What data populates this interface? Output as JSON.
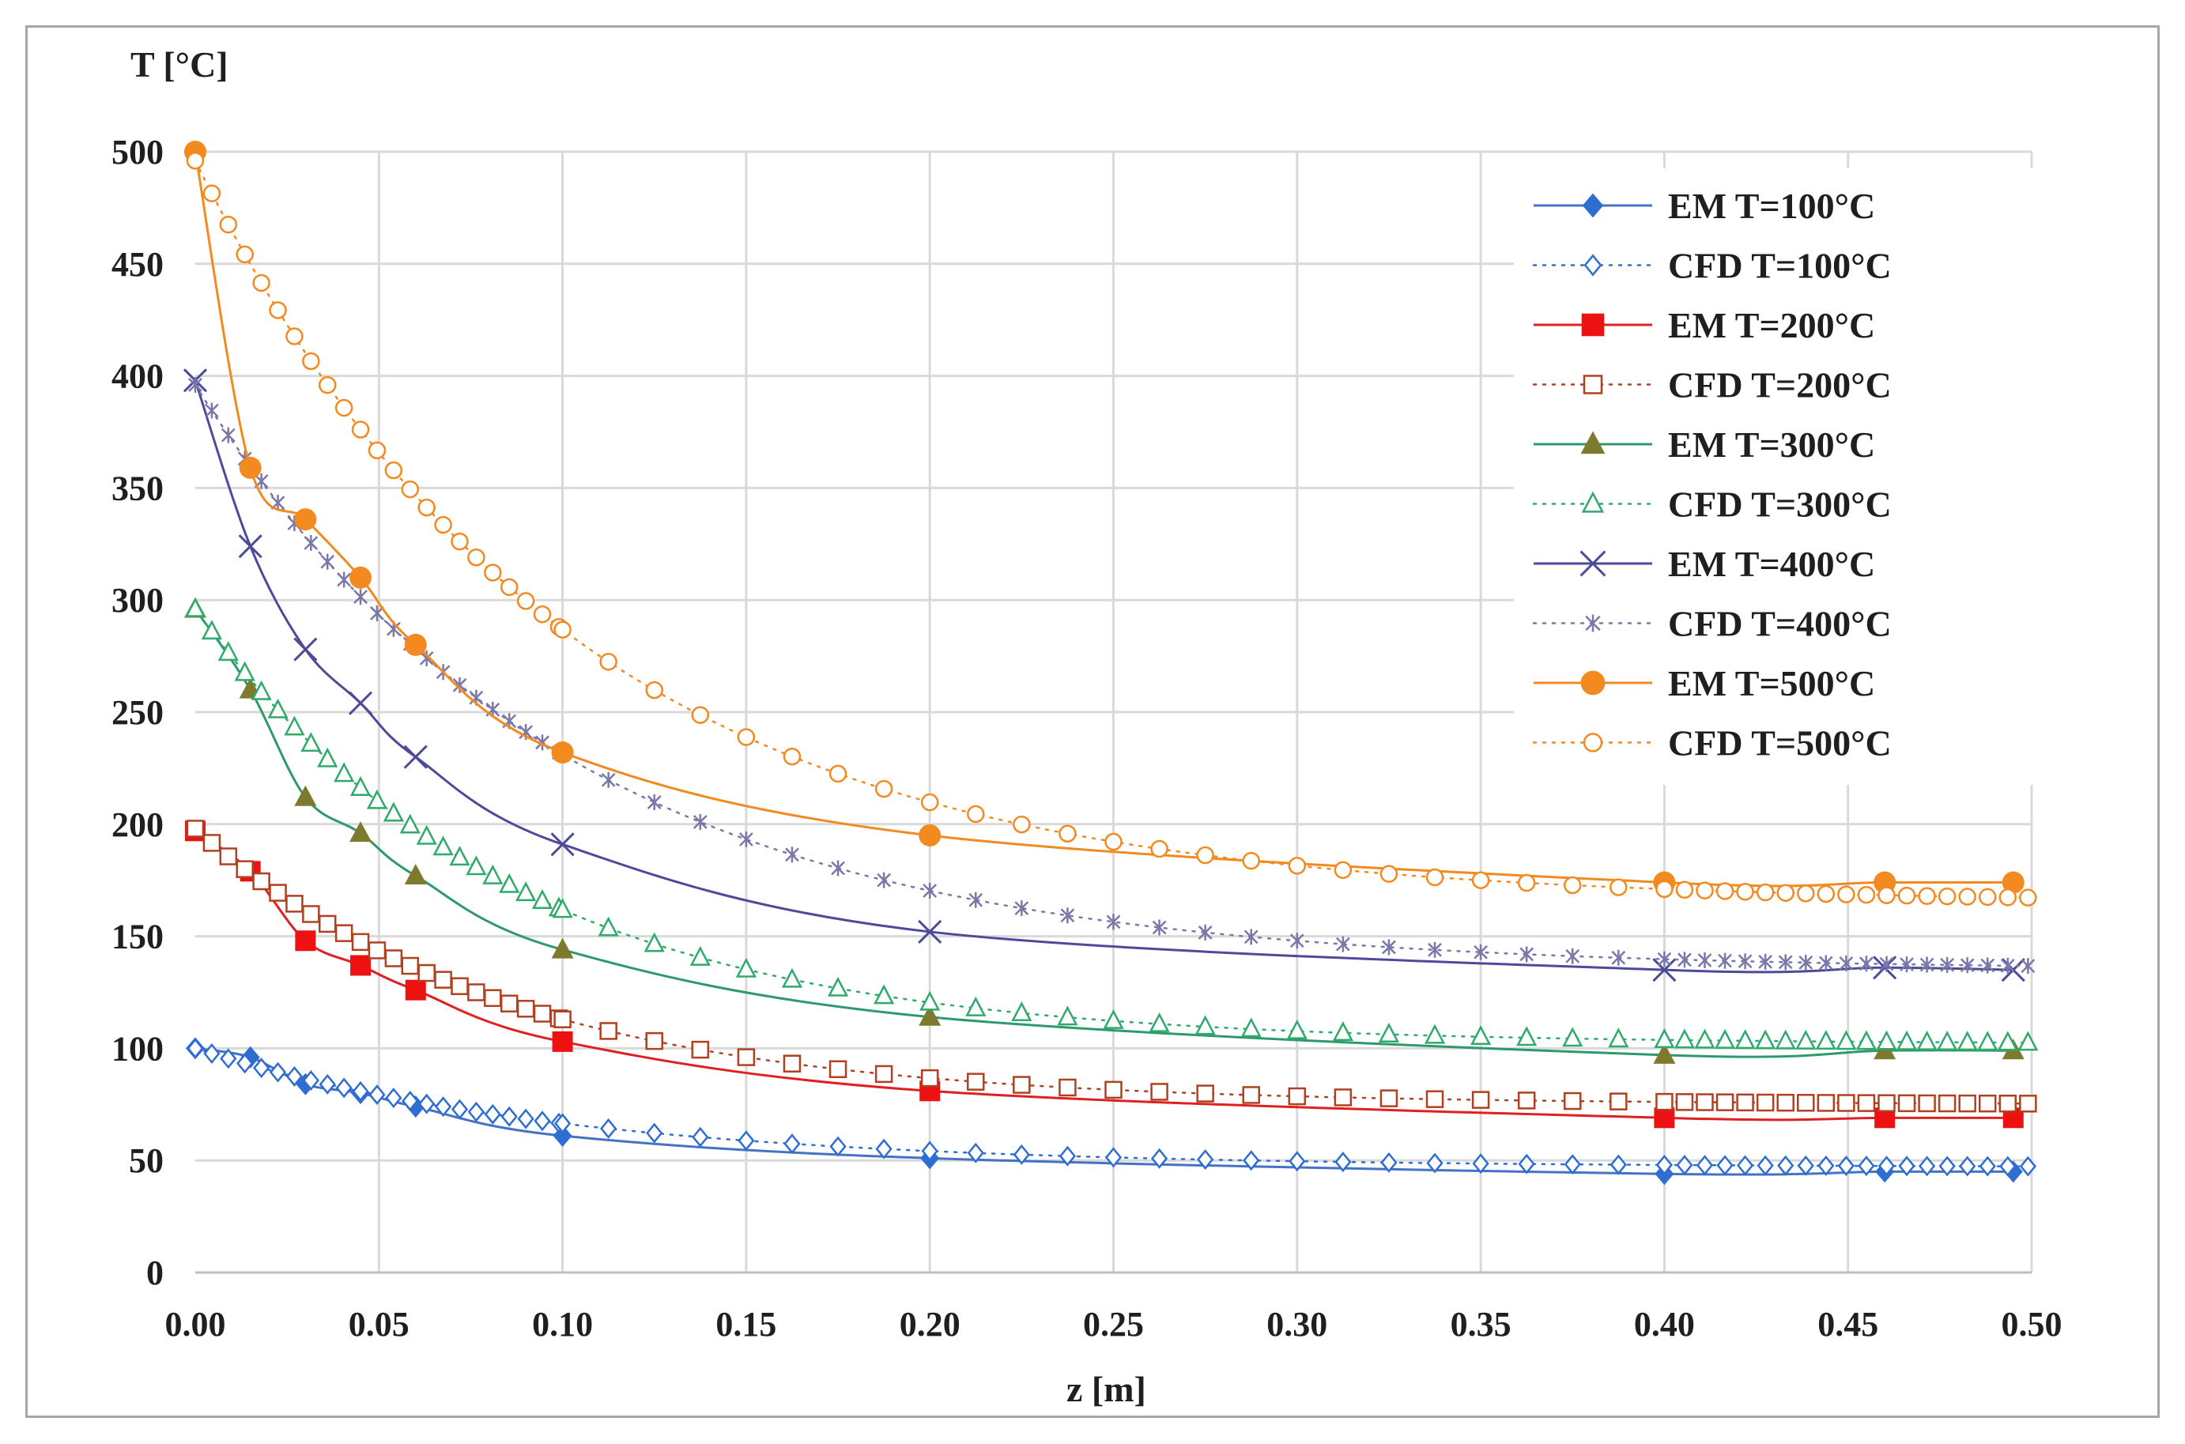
{
  "chart_data": {
    "type": "line",
    "title": "",
    "ylabel": "T [°C]",
    "xlabel": "z [m]",
    "xlim": [
      0,
      0.5
    ],
    "ylim": [
      0,
      500
    ],
    "grid": true,
    "legend_position": "top-right",
    "xticks": [
      0,
      0.05,
      0.1,
      0.15,
      0.2,
      0.25,
      0.3,
      0.35,
      0.4,
      0.45,
      0.5
    ],
    "xtick_labels": [
      "0.00",
      "0.05",
      "0.10",
      "0.15",
      "0.20",
      "0.25",
      "0.30",
      "0.35",
      "0.40",
      "0.45",
      "0.50"
    ],
    "yticks": [
      0,
      50,
      100,
      150,
      200,
      250,
      300,
      350,
      400,
      450,
      500
    ],
    "ytick_labels": [
      "0",
      "50",
      "100",
      "150",
      "200",
      "250",
      "300",
      "350",
      "400",
      "450",
      "500"
    ],
    "series": [
      {
        "name": "EM  T=100°C",
        "kind": "EM",
        "color": "#4472c4",
        "marker": "diamond-filled",
        "markerColor": "#2e6dd2",
        "x": [
          0,
          0.015,
          0.03,
          0.045,
          0.06,
          0.1,
          0.2,
          0.4,
          0.46,
          0.495
        ],
        "y": [
          100,
          96,
          84,
          80,
          74,
          61,
          51,
          44,
          45,
          45
        ]
      },
      {
        "name": "CFD  T=100°C",
        "kind": "CFD",
        "color": "#2e6dd2",
        "marker": "diamond-open",
        "tau": 0.1,
        "x0": 0,
        "x1": 0.5,
        "y0": 100,
        "yinf": 47
      },
      {
        "name": "EM  T=200°C",
        "kind": "EM",
        "color": "#e02020",
        "marker": "square-filled",
        "markerColor": "#ee1111",
        "x": [
          0,
          0.015,
          0.03,
          0.045,
          0.06,
          0.1,
          0.2,
          0.4,
          0.46,
          0.495
        ],
        "y": [
          197,
          179,
          148,
          137,
          126,
          103,
          81,
          69,
          69,
          69
        ]
      },
      {
        "name": "CFD  T=200°C",
        "kind": "CFD",
        "color": "#b04020",
        "marker": "square-open",
        "tau": 0.085,
        "x0": 0,
        "x1": 0.5,
        "y0": 198,
        "yinf": 75
      },
      {
        "name": "EM  T=300°C",
        "kind": "EM",
        "color": "#2e9a6c",
        "marker": "triangle-filled",
        "markerColor": "#7d7a2e",
        "x": [
          0,
          0.015,
          0.03,
          0.045,
          0.06,
          0.1,
          0.2,
          0.4,
          0.46,
          0.495
        ],
        "y": [
          296,
          260,
          212,
          196,
          177,
          144,
          114,
          97,
          99,
          99
        ]
      },
      {
        "name": "CFD  T=300°C",
        "kind": "CFD",
        "color": "#2eaa6a",
        "marker": "triangle-open",
        "tau": 0.085,
        "x0": 0,
        "x1": 0.5,
        "y0": 296,
        "yinf": 102
      },
      {
        "name": "EM  T=400°C",
        "kind": "EM",
        "color": "#4e4a9a",
        "marker": "x",
        "markerColor": "#4e4a9a",
        "x": [
          0,
          0.015,
          0.03,
          0.045,
          0.06,
          0.1,
          0.2,
          0.4,
          0.46,
          0.495
        ],
        "y": [
          398,
          324,
          278,
          254,
          230,
          191,
          152,
          135,
          136,
          135
        ]
      },
      {
        "name": "CFD  T=400°C",
        "kind": "CFD",
        "color": "#7a78a8",
        "marker": "star",
        "tau": 0.1,
        "x0": 0,
        "x1": 0.5,
        "y0": 396,
        "yinf": 135
      },
      {
        "name": "EM  T=500°C",
        "kind": "EM",
        "color": "#f28a20",
        "marker": "circle-filled",
        "markerColor": "#f28a20",
        "x": [
          0,
          0.015,
          0.03,
          0.045,
          0.06,
          0.1,
          0.2,
          0.4,
          0.46,
          0.495
        ],
        "y": [
          500,
          359,
          336,
          310,
          280,
          232,
          195,
          174,
          174,
          174
        ]
      },
      {
        "name": "CFD  T=500°C",
        "kind": "CFD",
        "color": "#f28a20",
        "marker": "circle-open",
        "tau": 0.1,
        "x0": 0,
        "x1": 0.5,
        "y0": 496,
        "yinf": 165
      }
    ]
  }
}
